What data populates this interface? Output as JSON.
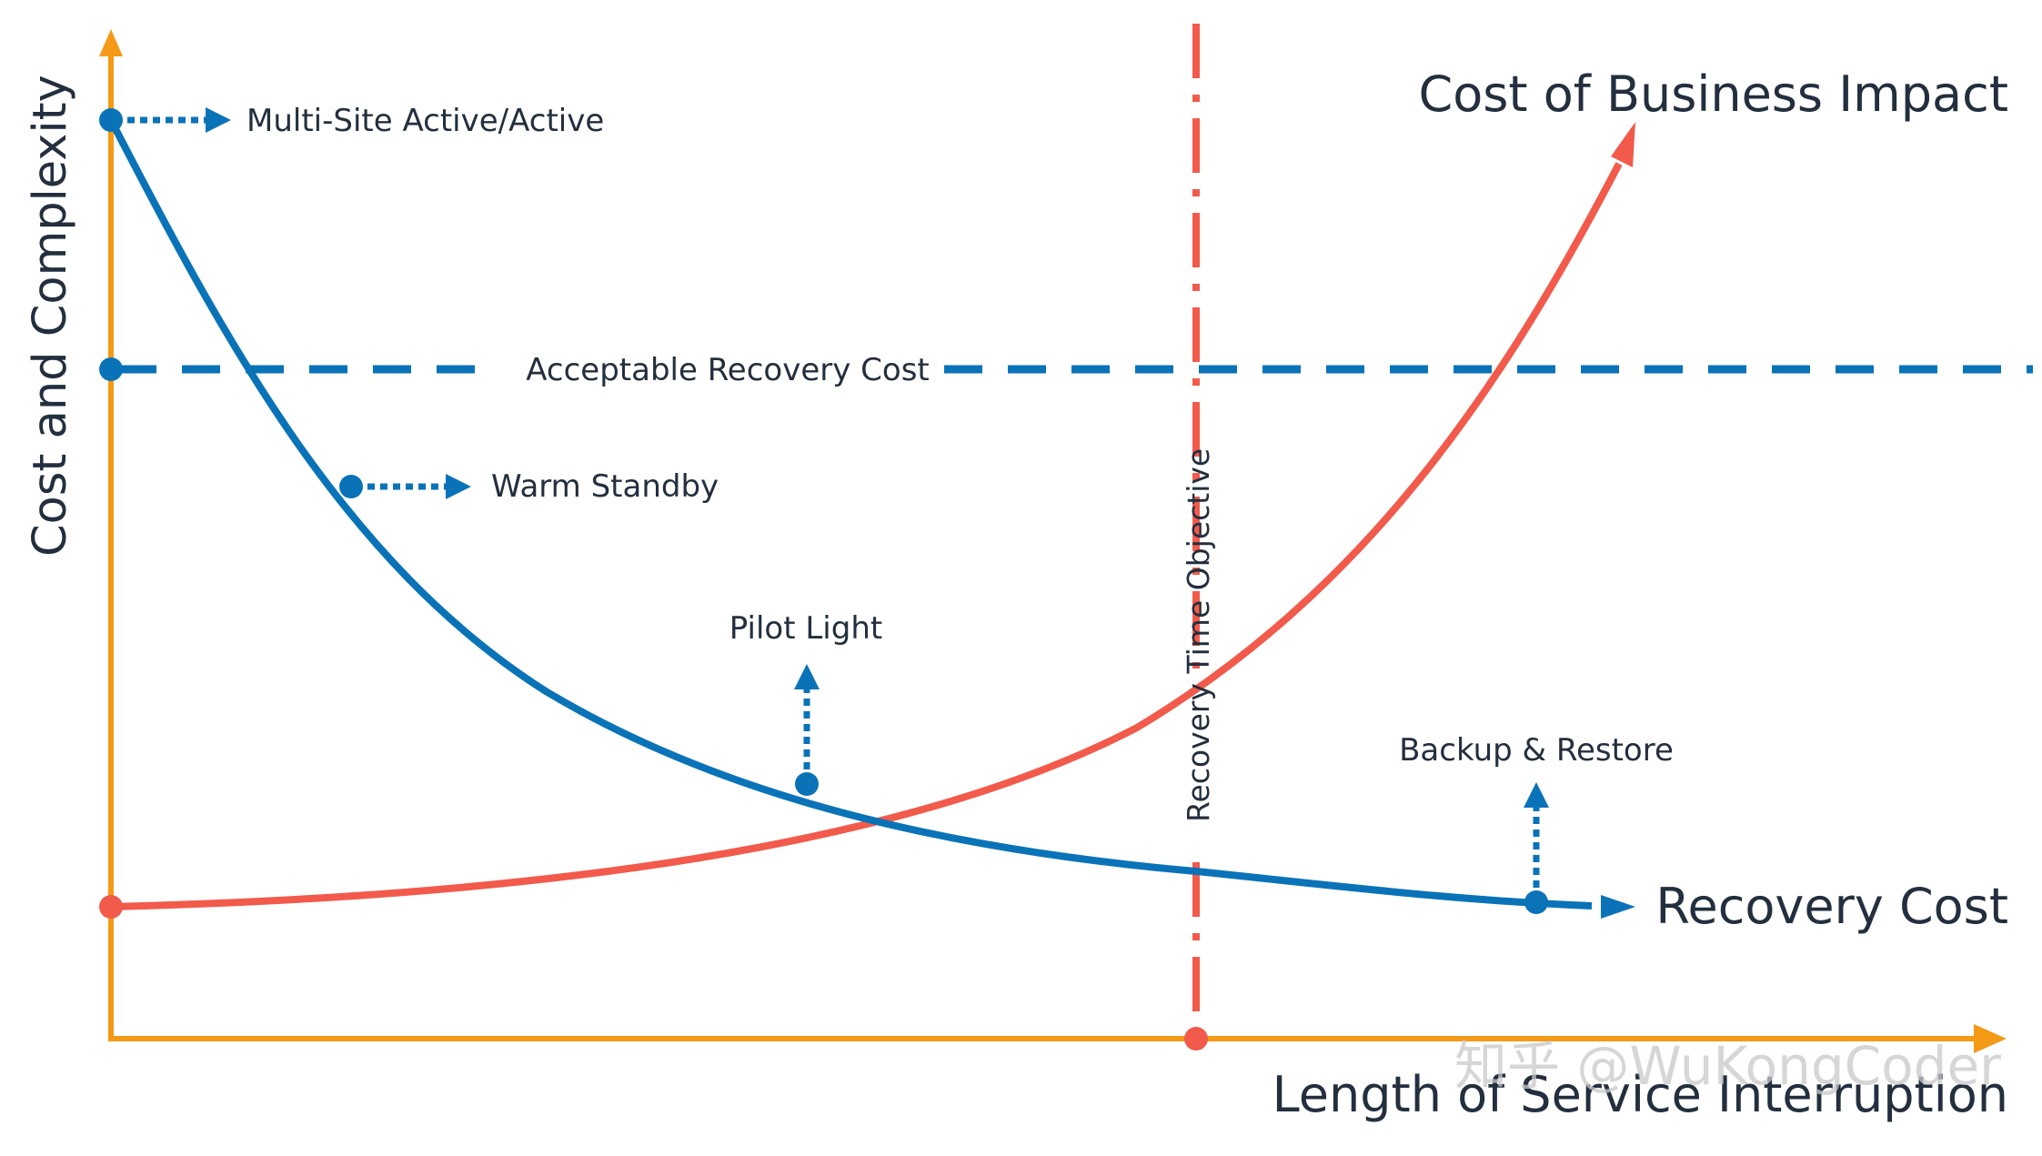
{
  "colors": {
    "axis": "#f49a16",
    "recovery_cost": "#0a73b8",
    "business_impact": "#f25a4b",
    "text": "#232f3e",
    "watermark": "#c9c9c9"
  },
  "chart_data": {
    "type": "line",
    "title": "",
    "ylabel": "Cost and Complexity",
    "xlabel": "Length of Service Interruption",
    "series": [
      {
        "name": "Cost of Business Impact",
        "shape": "increasing exponential",
        "color": "#f25a4b"
      },
      {
        "name": "Recovery Cost",
        "shape": "decreasing exponential",
        "color": "#0a73b8"
      }
    ],
    "reference_lines": [
      {
        "name": "Acceptable Recovery Cost",
        "orientation": "horizontal",
        "style": "dashed",
        "color": "#0a73b8"
      },
      {
        "name": "Recovery Time Objective",
        "orientation": "vertical",
        "style": "dash-dot",
        "color": "#f25a4b"
      }
    ],
    "annotations": [
      {
        "label": "Multi-Site Active/Active",
        "on_series": "Recovery Cost"
      },
      {
        "label": "Warm Standby",
        "on_series": "Recovery Cost"
      },
      {
        "label": "Pilot Light",
        "on_series": "Recovery Cost"
      },
      {
        "label": "Backup & Restore",
        "on_series": "Recovery Cost"
      }
    ]
  },
  "labels": {
    "y_axis": "Cost and Complexity",
    "x_axis": "Length of Service Interruption",
    "business_impact": "Cost of Business Impact",
    "recovery_cost": "Recovery Cost",
    "acceptable": "Acceptable Recovery Cost",
    "rto": "Recovery Time Objective",
    "multi_site": "Multi-Site Active/Active",
    "warm_standby": "Warm Standby",
    "pilot_light": "Pilot Light",
    "backup_restore": "Backup & Restore"
  },
  "watermark": "知乎 @WuKongCoder"
}
